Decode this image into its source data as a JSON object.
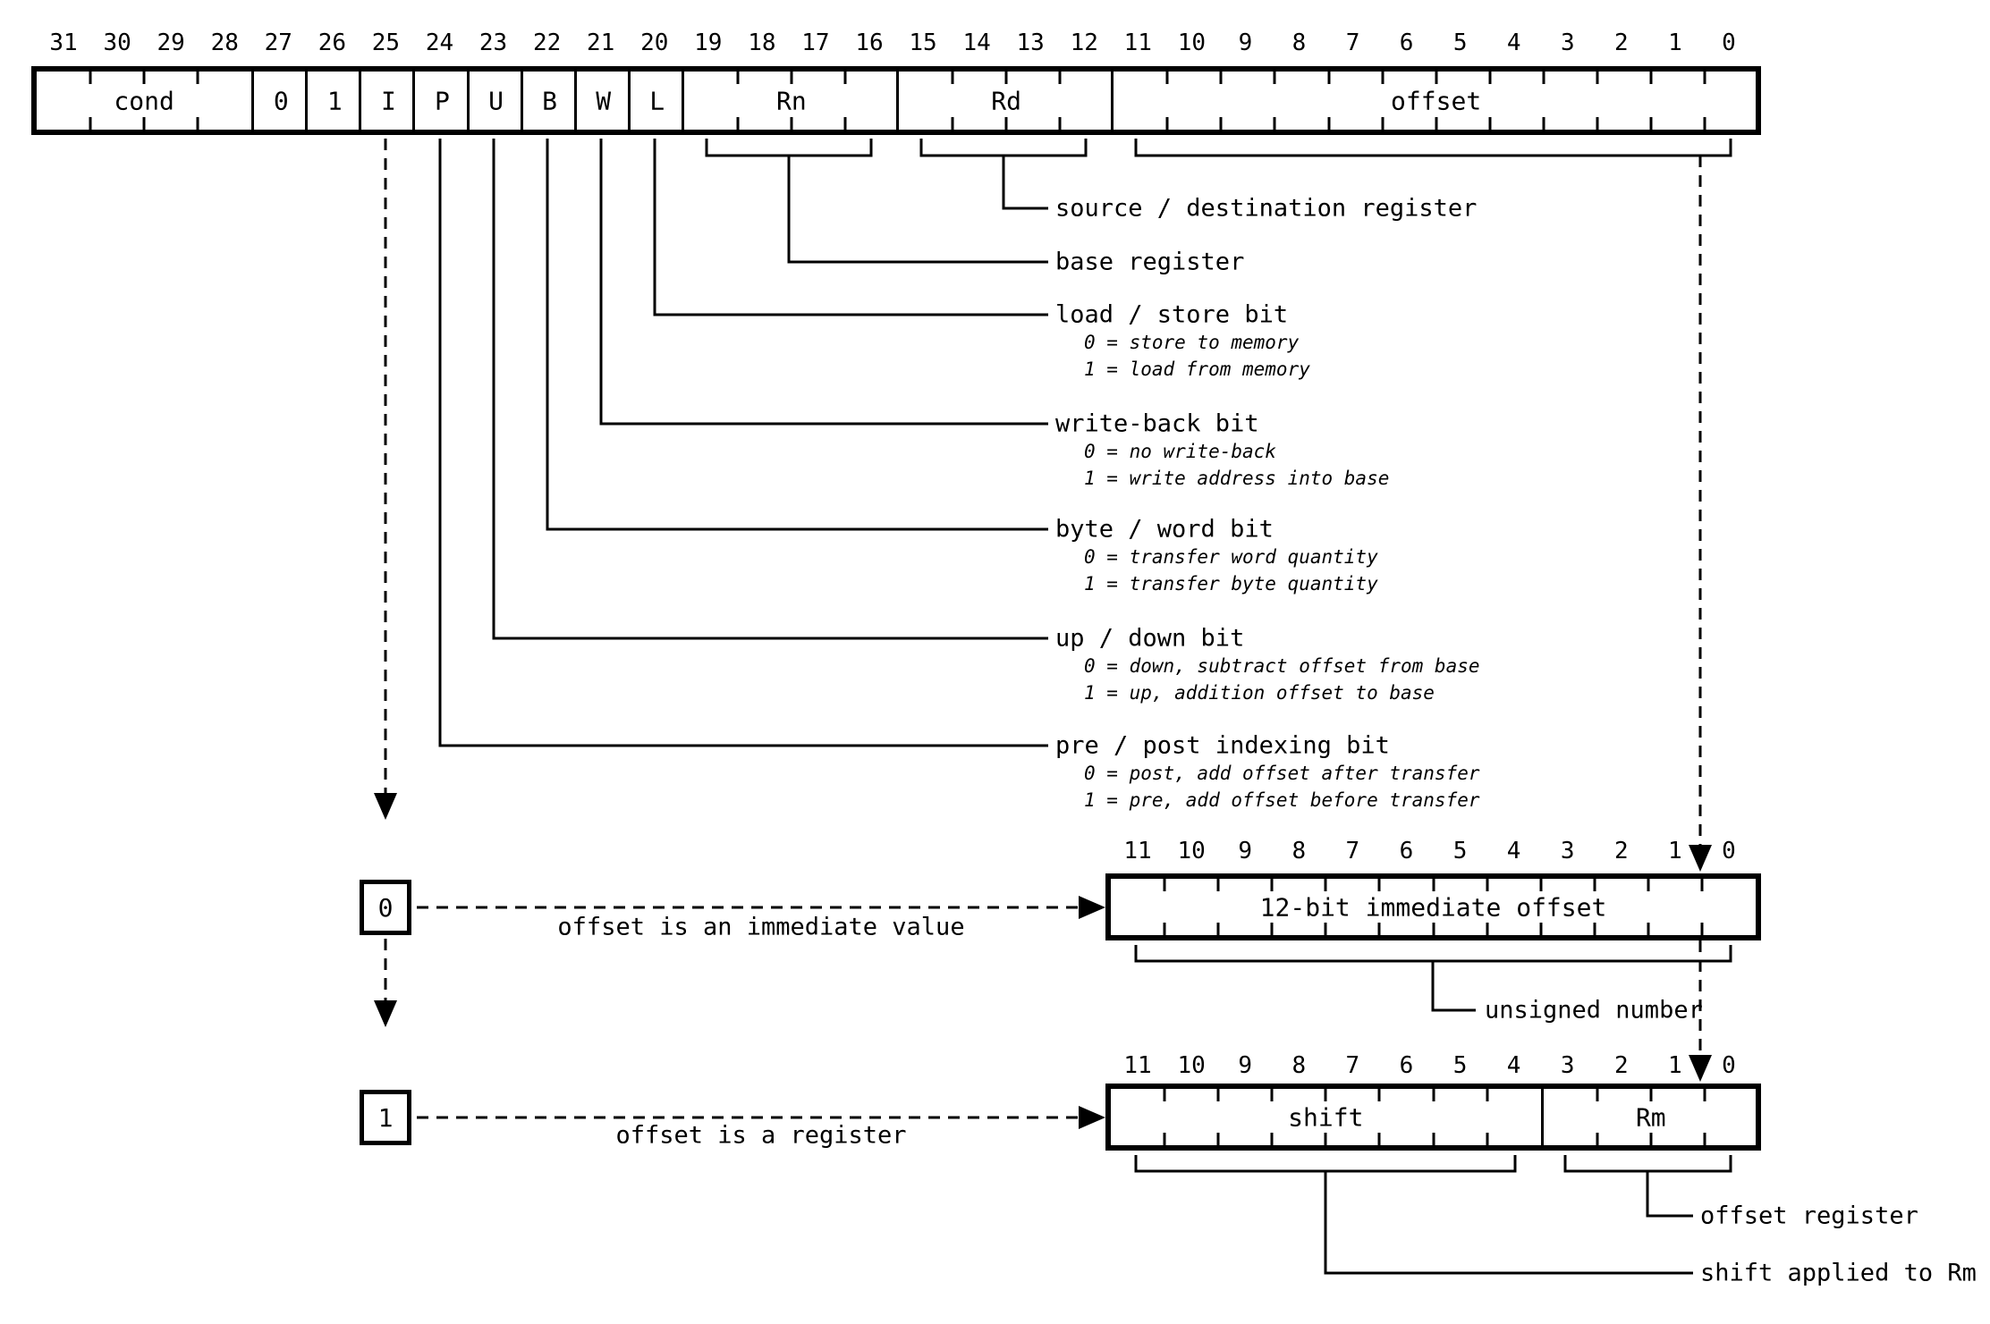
{
  "instruction_word": {
    "bit_numbers": [
      "31",
      "30",
      "29",
      "28",
      "27",
      "26",
      "25",
      "24",
      "23",
      "22",
      "21",
      "20",
      "19",
      "18",
      "17",
      "16",
      "15",
      "14",
      "13",
      "12",
      "11",
      "10",
      "9",
      "8",
      "7",
      "6",
      "5",
      "4",
      "3",
      "2",
      "1",
      "0"
    ],
    "fields": [
      {
        "label": "cond",
        "bits": 4
      },
      {
        "label": "0",
        "bits": 1
      },
      {
        "label": "1",
        "bits": 1
      },
      {
        "label": "I",
        "bits": 1
      },
      {
        "label": "P",
        "bits": 1
      },
      {
        "label": "U",
        "bits": 1
      },
      {
        "label": "B",
        "bits": 1
      },
      {
        "label": "W",
        "bits": 1
      },
      {
        "label": "L",
        "bits": 1
      },
      {
        "label": "Rn",
        "bits": 4
      },
      {
        "label": "Rd",
        "bits": 4
      },
      {
        "label": "offset",
        "bits": 12
      }
    ]
  },
  "annotations": [
    {
      "label": "source / destination register",
      "details": []
    },
    {
      "label": "base register",
      "details": []
    },
    {
      "label": "load / store bit",
      "details": [
        "0 = store to memory",
        "1 = load from memory"
      ]
    },
    {
      "label": "write-back bit",
      "details": [
        "0 = no write-back",
        "1 = write address into base"
      ]
    },
    {
      "label": "byte / word bit",
      "details": [
        "0 = transfer word quantity",
        "1 = transfer byte quantity"
      ]
    },
    {
      "label": "up / down bit",
      "details": [
        "0 = down, subtract offset from base",
        "1 = up, addition offset to base"
      ]
    },
    {
      "label": "pre / post indexing bit",
      "details": [
        "0 = post, add offset after transfer",
        "1 = pre, add offset before transfer"
      ]
    }
  ],
  "immediate_branch": {
    "selector": "0",
    "arrow_label": "offset is an immediate value",
    "bit_numbers": [
      "11",
      "10",
      "9",
      "8",
      "7",
      "6",
      "5",
      "4",
      "3",
      "2",
      "1",
      "0"
    ],
    "fields": [
      {
        "label": "12-bit immediate offset",
        "bits": 12
      }
    ],
    "note": "unsigned number"
  },
  "register_branch": {
    "selector": "1",
    "arrow_label": "offset is a register",
    "bit_numbers": [
      "11",
      "10",
      "9",
      "8",
      "7",
      "6",
      "5",
      "4",
      "3",
      "2",
      "1",
      "0"
    ],
    "fields": [
      {
        "label": "shift",
        "bits": 8
      },
      {
        "label": "Rm",
        "bits": 4
      }
    ],
    "rm_note": "offset register",
    "shift_note": "shift applied to Rm"
  }
}
